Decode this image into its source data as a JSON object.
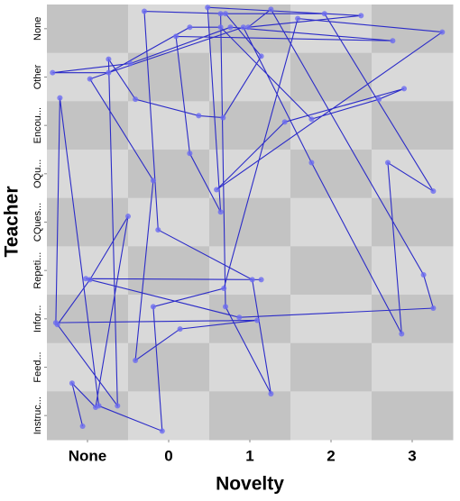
{
  "chart_data": {
    "type": "line",
    "x_label": "Novelty",
    "y_label": "Teacher",
    "xlim": [
      -0.5,
      4.5
    ],
    "xticks": [
      {
        "value": 0,
        "label": "None"
      },
      {
        "value": 1,
        "label": "0"
      },
      {
        "value": 2,
        "label": "1"
      },
      {
        "value": 3,
        "label": "2"
      },
      {
        "value": 4,
        "label": "3"
      }
    ],
    "ylim": [
      -0.5,
      8.5
    ],
    "yticks": [
      {
        "value": 0,
        "label": "Instruc..."
      },
      {
        "value": 1,
        "label": "Feed..."
      },
      {
        "value": 2,
        "label": "Infor..."
      },
      {
        "value": 3,
        "label": "Repeti..."
      },
      {
        "value": 4,
        "label": "CQues..."
      },
      {
        "value": 5,
        "label": "OQu..."
      },
      {
        "value": 6,
        "label": "Encou..."
      },
      {
        "value": 7,
        "label": "Other"
      },
      {
        "value": 8,
        "label": "None"
      }
    ],
    "color": "#2b2bc8",
    "marker_color": "#6b6bf0",
    "checker_colors": [
      "#c3c3c3",
      "#d9d9d9"
    ],
    "x": [
      -0.06,
      -0.19,
      0.1,
      0.5,
      0.03,
      -0.37,
      0.37,
      0.26,
      0.59,
      1.37,
      1.67,
      2.14,
      1.7,
      0.7,
      0.87,
      2.03,
      2.26,
      1.7,
      1.64,
      2.92,
      4.26,
      3.7,
      3.87,
      2.76,
      1.92,
      0.03,
      0.81,
      0.59,
      1.14,
      2.09,
      -0.39,
      -0.34,
      0.14,
      0.92,
      0.81,
      1.68,
      2.59,
      4.37,
      1.59,
      2.43,
      3.9,
      3.59,
      2.76,
      1.64,
      1.26,
      0.26,
      -0.43,
      0.53,
      1.76,
      3.76,
      1.09,
      1.26,
      1.64,
      1.48,
      3.37,
      1.98,
      2.26,
      4.14,
      4.26,
      1.87,
      -0.02,
      2.14
    ],
    "values": [
      -0.22,
      0.67,
      0.17,
      4.12,
      2.81,
      1.88,
      0.2,
      7.37,
      6.54,
      6.2,
      6.16,
      7.43,
      8.31,
      8.36,
      3.84,
      2.81,
      0.45,
      2.25,
      8.31,
      8.31,
      4.64,
      5.23,
      1.69,
      5.23,
      8.03,
      6.96,
      4.86,
      1.14,
      1.79,
      1.97,
      1.92,
      6.57,
      0.2,
      -0.32,
      2.25,
      2.63,
      8.21,
      7.93,
      4.67,
      6.07,
      6.76,
      6.54,
      6.13,
      8.03,
      8.03,
      7.09,
      7.09,
      7.28,
      8.03,
      7.75,
      7.84,
      5.42,
      4.21,
      8.44,
      8.27,
      8.03,
      8.4,
      2.91,
      2.22,
      2.03,
      2.83,
      2.81
    ]
  }
}
